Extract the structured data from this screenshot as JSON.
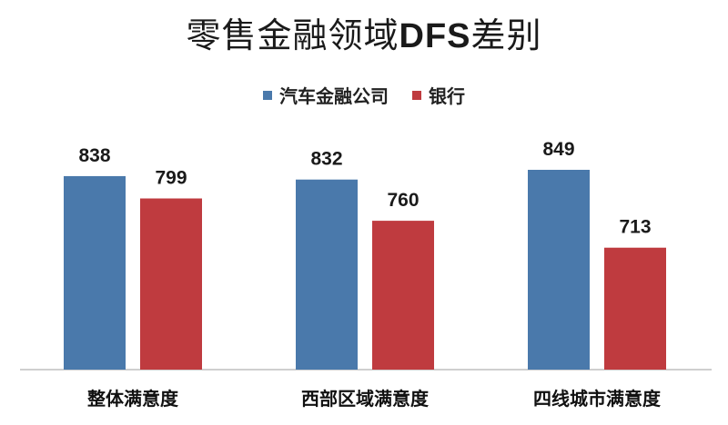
{
  "chart_data": {
    "type": "bar",
    "title_main": "零售金融领域",
    "title_bold": "DFS",
    "title_tail": "差别",
    "categories": [
      "整体满意度",
      "西部区域满意度",
      "四线城市满意度"
    ],
    "series": [
      {
        "name": "汽车金融公司",
        "color": "#4A79AB",
        "values": [
          838,
          832,
          849
        ]
      },
      {
        "name": "银行",
        "color": "#BF3B3F",
        "values": [
          799,
          760,
          713
        ]
      }
    ],
    "xlabel": "",
    "ylabel": "",
    "ylim": [
      500,
      880
    ],
    "grid": false,
    "legend_position": "top-center"
  }
}
